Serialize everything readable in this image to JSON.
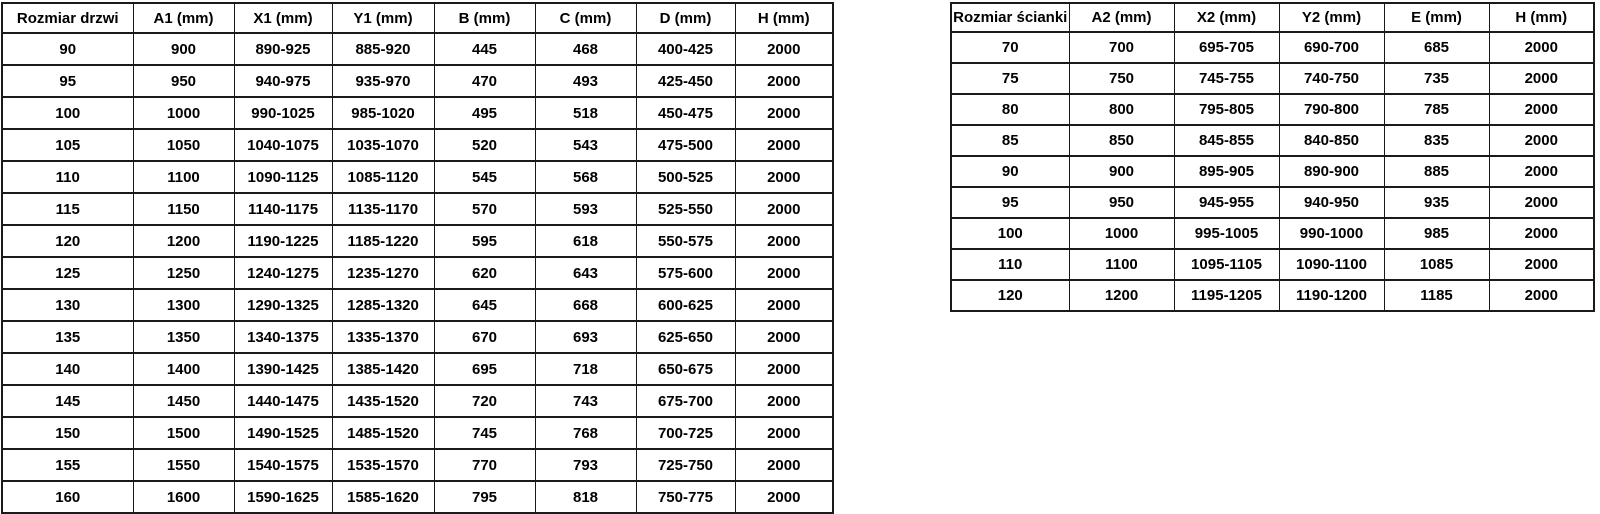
{
  "page": {
    "background_color": "#ffffff",
    "border_color": "#1a1a1a",
    "text_color": "#000000"
  },
  "door_table": {
    "title": "Rozmiar drzwi",
    "headers": [
      "Rozmiar drzwi",
      "A1 (mm)",
      "X1 (mm)",
      "Y1 (mm)",
      "B (mm)",
      "C (mm)",
      "D (mm)",
      "H (mm)"
    ],
    "rows": [
      [
        "90",
        "900",
        "890-925",
        "885-920",
        "445",
        "468",
        "400-425",
        "2000"
      ],
      [
        "95",
        "950",
        "940-975",
        "935-970",
        "470",
        "493",
        "425-450",
        "2000"
      ],
      [
        "100",
        "1000",
        "990-1025",
        "985-1020",
        "495",
        "518",
        "450-475",
        "2000"
      ],
      [
        "105",
        "1050",
        "1040-1075",
        "1035-1070",
        "520",
        "543",
        "475-500",
        "2000"
      ],
      [
        "110",
        "1100",
        "1090-1125",
        "1085-1120",
        "545",
        "568",
        "500-525",
        "2000"
      ],
      [
        "115",
        "1150",
        "1140-1175",
        "1135-1170",
        "570",
        "593",
        "525-550",
        "2000"
      ],
      [
        "120",
        "1200",
        "1190-1225",
        "1185-1220",
        "595",
        "618",
        "550-575",
        "2000"
      ],
      [
        "125",
        "1250",
        "1240-1275",
        "1235-1270",
        "620",
        "643",
        "575-600",
        "2000"
      ],
      [
        "130",
        "1300",
        "1290-1325",
        "1285-1320",
        "645",
        "668",
        "600-625",
        "2000"
      ],
      [
        "135",
        "1350",
        "1340-1375",
        "1335-1370",
        "670",
        "693",
        "625-650",
        "2000"
      ],
      [
        "140",
        "1400",
        "1390-1425",
        "1385-1420",
        "695",
        "718",
        "650-675",
        "2000"
      ],
      [
        "145",
        "1450",
        "1440-1475",
        "1435-1520",
        "720",
        "743",
        "675-700",
        "2000"
      ],
      [
        "150",
        "1500",
        "1490-1525",
        "1485-1520",
        "745",
        "768",
        "700-725",
        "2000"
      ],
      [
        "155",
        "1550",
        "1540-1575",
        "1535-1570",
        "770",
        "793",
        "725-750",
        "2000"
      ],
      [
        "160",
        "1600",
        "1590-1625",
        "1585-1620",
        "795",
        "818",
        "750-775",
        "2000"
      ]
    ]
  },
  "wall_table": {
    "title": "Rozmiar ścianki",
    "headers": [
      "Rozmiar ścianki",
      "A2 (mm)",
      "X2 (mm)",
      "Y2 (mm)",
      "E (mm)",
      "H (mm)"
    ],
    "rows": [
      [
        "70",
        "700",
        "695-705",
        "690-700",
        "685",
        "2000"
      ],
      [
        "75",
        "750",
        "745-755",
        "740-750",
        "735",
        "2000"
      ],
      [
        "80",
        "800",
        "795-805",
        "790-800",
        "785",
        "2000"
      ],
      [
        "85",
        "850",
        "845-855",
        "840-850",
        "835",
        "2000"
      ],
      [
        "90",
        "900",
        "895-905",
        "890-900",
        "885",
        "2000"
      ],
      [
        "95",
        "950",
        "945-955",
        "940-950",
        "935",
        "2000"
      ],
      [
        "100",
        "1000",
        "995-1005",
        "990-1000",
        "985",
        "2000"
      ],
      [
        "110",
        "1100",
        "1095-1105",
        "1090-1100",
        "1085",
        "2000"
      ],
      [
        "120",
        "1200",
        "1195-1205",
        "1190-1200",
        "1185",
        "2000"
      ]
    ]
  }
}
